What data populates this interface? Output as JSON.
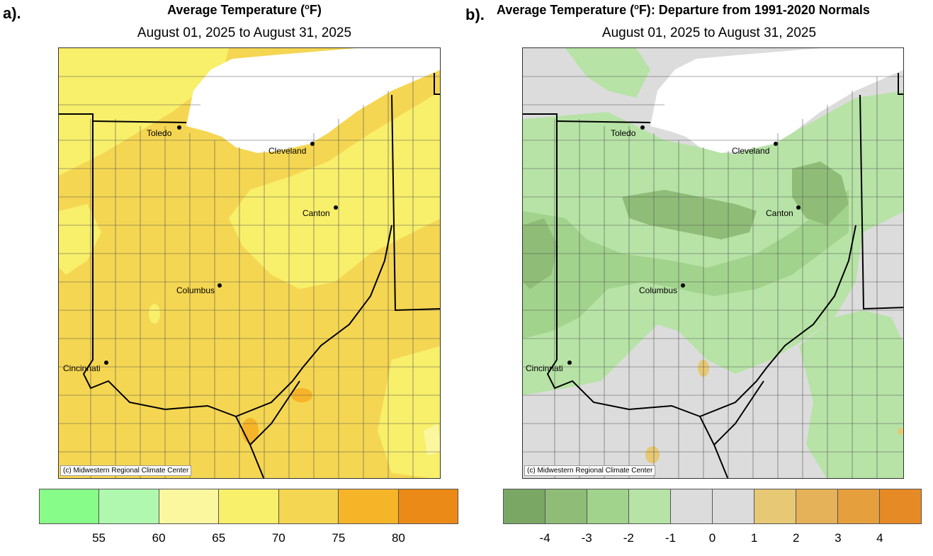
{
  "panels": [
    {
      "letter": "a).",
      "title_main": "Average Temperature (",
      "title_degree": "o",
      "title_unit": "F)",
      "title_rest": "",
      "subtitle": "August 01, 2025 to August 31, 2025",
      "copyright": "(c) Midwestern Regional Climate Center",
      "legend": {
        "colors": [
          "#88fc88",
          "#b0f8b0",
          "#fbf79f",
          "#f8ef6b",
          "#f5d652",
          "#f6b428",
          "#eb8a17"
        ],
        "ticks": [
          "55",
          "60",
          "65",
          "70",
          "75",
          "80"
        ]
      }
    },
    {
      "letter": "b).",
      "title_main": "Average Temperature (",
      "title_degree": "o",
      "title_unit": "F)",
      "title_rest": ": Departure from 1991-2020 Normals",
      "subtitle": "August 01, 2025 to August 31, 2025",
      "copyright": "(c) Midwestern Regional Climate Center",
      "legend": {
        "colors": [
          "#7aa864",
          "#8fbd78",
          "#a1d38c",
          "#b7e3a6",
          "#dcdcdc",
          "#dcdcdc",
          "#e7c874",
          "#e5b159",
          "#e59f3d",
          "#e68a26"
        ],
        "ticks": [
          "-4",
          "-3",
          "-2",
          "-1",
          "0",
          "1",
          "2",
          "3",
          "4"
        ]
      }
    }
  ],
  "cities": [
    {
      "name": "Toledo"
    },
    {
      "name": "Cleveland"
    },
    {
      "name": "Canton"
    },
    {
      "name": "Columbus"
    },
    {
      "name": "Cincinnati"
    }
  ],
  "map_colors": {
    "a_base": "#f5d652",
    "a_light": "#f8ef6b",
    "a_orange": "#f6b428",
    "a_pale": "#fbf79f",
    "b_base": "#dcdcdc",
    "b_green": "#b7e3a6",
    "b_mid": "#a1d38c",
    "b_dark": "#8fbd78",
    "b_tan": "#e7c874",
    "lake": "#ffffff",
    "county_line": "#555555",
    "state_line": "#000000"
  }
}
